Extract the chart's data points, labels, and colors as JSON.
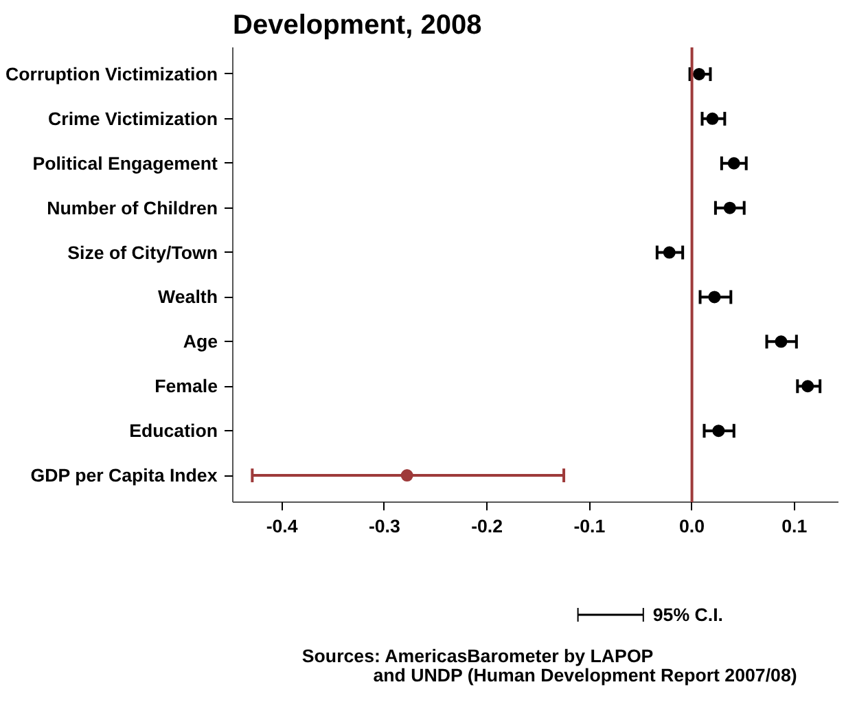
{
  "chart_data": {
    "type": "scatter",
    "title": "Development, 2008",
    "categories": [
      "Corruption Victimization",
      "Crime Victimization",
      "Political Engagement",
      "Number of Children",
      "Size of City/Town",
      "Wealth",
      "Age",
      "Female",
      "Education",
      "GDP per Capita Index"
    ],
    "orientation": "horizontal",
    "series": [
      {
        "name": "95% C.I.",
        "color": "#000000",
        "colors": [
          "#000000",
          "#000000",
          "#000000",
          "#000000",
          "#000000",
          "#000000",
          "#000000",
          "#000000",
          "#000000",
          "#9e3a3a"
        ],
        "values": [
          0.007,
          0.02,
          0.041,
          0.037,
          -0.022,
          0.022,
          0.087,
          0.113,
          0.026,
          -0.278
        ],
        "errors": [
          [
            -0.002,
            0.018
          ],
          [
            0.01,
            0.032
          ],
          [
            0.029,
            0.053
          ],
          [
            0.023,
            0.051
          ],
          [
            -0.034,
            -0.009
          ],
          [
            0.008,
            0.038
          ],
          [
            0.073,
            0.102
          ],
          [
            0.103,
            0.125
          ],
          [
            0.012,
            0.041
          ],
          [
            -0.429,
            -0.125
          ]
        ]
      }
    ],
    "xlim": [
      -0.448,
      0.143
    ],
    "xticks": [
      {
        "value": -0.4,
        "label": "-0.4"
      },
      {
        "value": -0.3,
        "label": "-0.3"
      },
      {
        "value": -0.2,
        "label": "-0.2"
      },
      {
        "value": -0.1,
        "label": "-0.1"
      },
      {
        "value": 0,
        "label": "0.0"
      },
      {
        "value": 0.1,
        "label": "0.1"
      }
    ],
    "ref_lines": [
      {
        "axis": "x",
        "value": 0,
        "color": "#9e3a3a"
      }
    ],
    "marker": "circle",
    "grid": false,
    "legend": "bottom",
    "annotations": [
      "Sources: AmericasBarometer by LAPOP",
      "and UNDP (Human Development Report 2007/08)"
    ]
  }
}
